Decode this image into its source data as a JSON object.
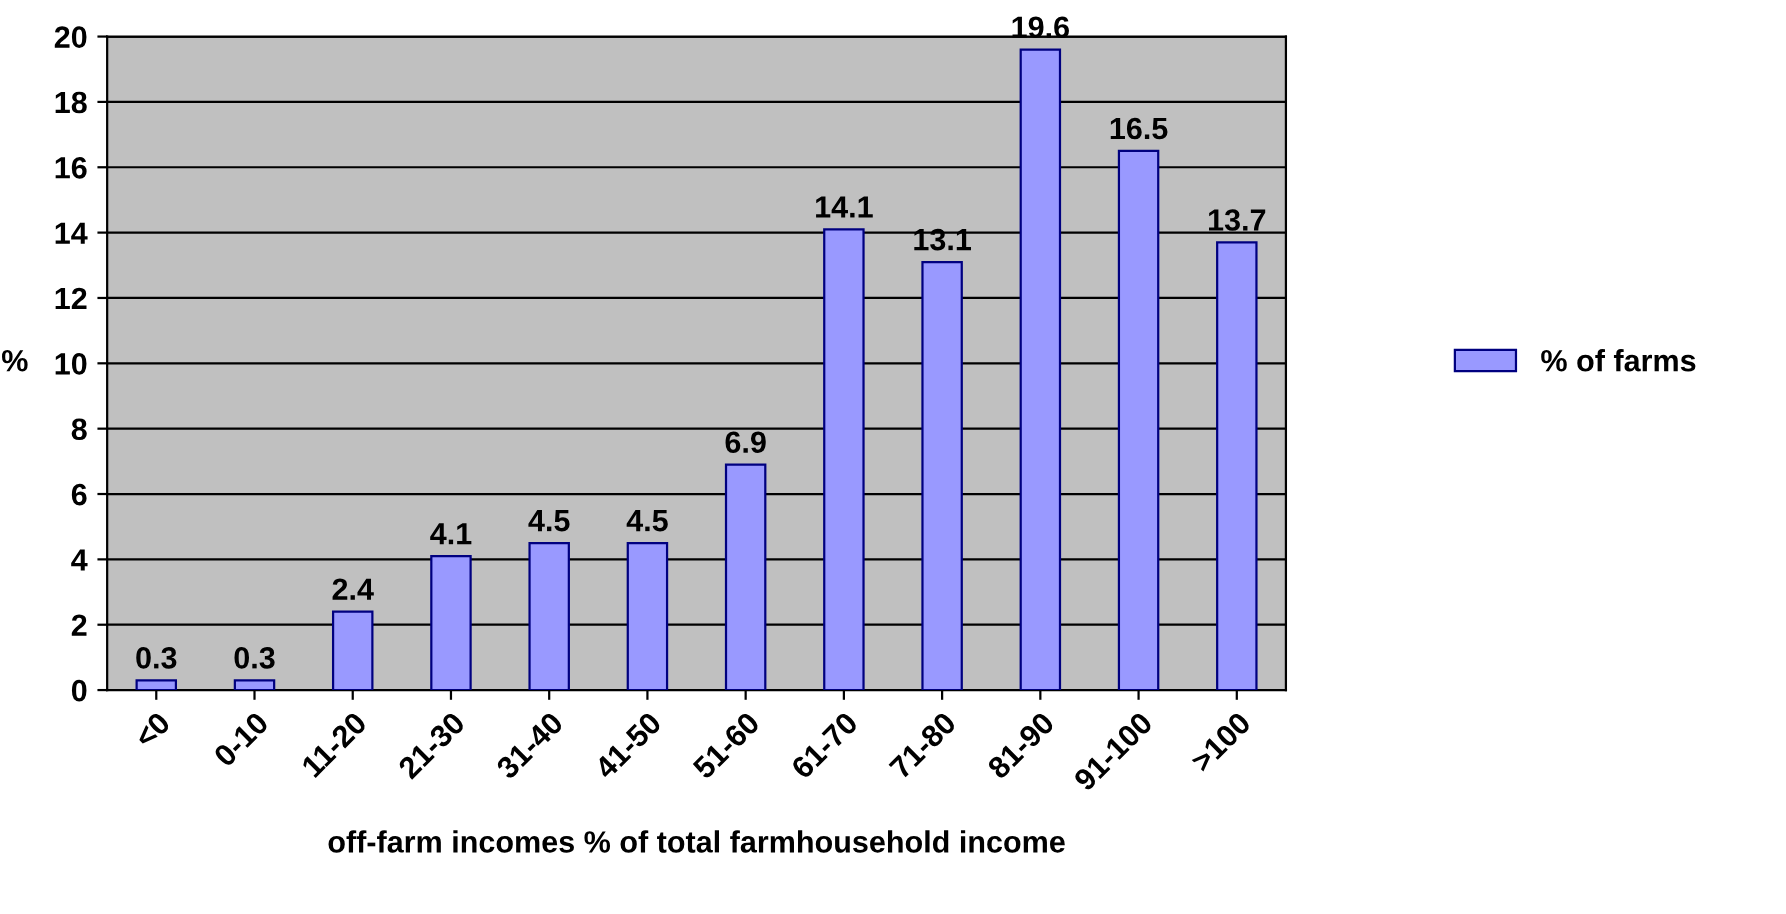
{
  "chart_data": {
    "type": "bar",
    "xlabel": "off-farm incomes % of total farmhousehold income",
    "ylabel": "%",
    "categories": [
      "<0",
      "0-10",
      "11-20",
      "21-30",
      "31-40",
      "41-50",
      "51-60",
      "61-70",
      "71-80",
      "81-90",
      "91-100",
      ">100"
    ],
    "series": [
      {
        "name": "% of farms",
        "color": "#9999ff",
        "values": [
          0.3,
          0.3,
          2.4,
          4.1,
          4.5,
          4.5,
          6.9,
          14.1,
          13.1,
          19.6,
          16.5,
          13.7
        ]
      }
    ],
    "ylim": [
      0,
      20
    ],
    "yticks": [
      0,
      2,
      4,
      6,
      8,
      10,
      12,
      14,
      16,
      18,
      20
    ],
    "grid": "y",
    "legend": "right",
    "data_labels": true
  }
}
